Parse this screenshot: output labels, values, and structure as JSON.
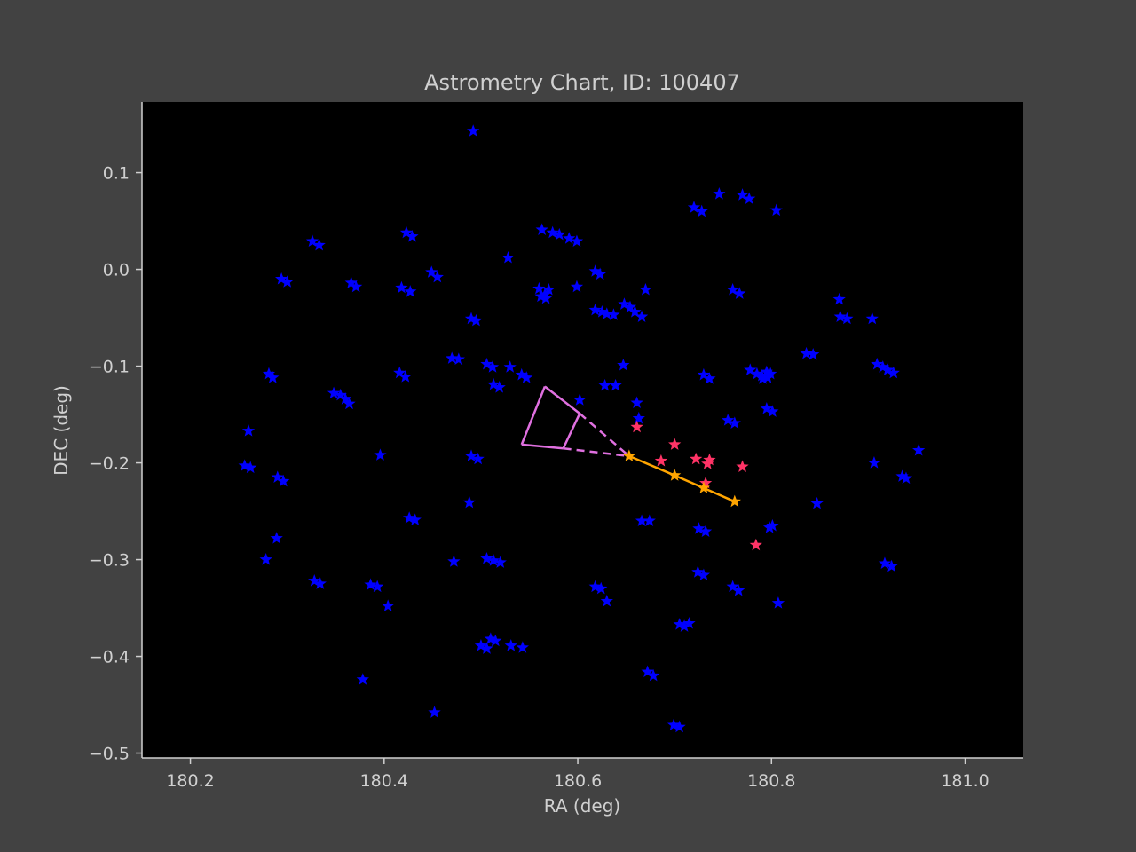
{
  "chart_data": {
    "type": "scatter",
    "title": "Astrometry Chart, ID: 100407",
    "xlabel": "RA (deg)",
    "ylabel": "DEC (deg)",
    "xlim": [
      180.15,
      181.06
    ],
    "ylim": [
      -0.505,
      0.173
    ],
    "xticks": [
      180.2,
      180.4,
      180.6,
      180.8,
      181.0
    ],
    "xtick_labels": [
      "180.2",
      "180.4",
      "180.6",
      "180.8",
      "181.0"
    ],
    "yticks": [
      0.1,
      0.0,
      -0.1,
      -0.2,
      -0.3,
      -0.4,
      -0.5
    ],
    "ytick_labels": [
      "0.1",
      "0.0",
      "−0.1",
      "−0.2",
      "−0.3",
      "−0.4",
      "−0.5"
    ],
    "grid": false,
    "colors": {
      "figure_bg": "#424242",
      "axes_bg": "#000000",
      "field_stars": "#0000ff",
      "highlight_stars": "#ff3366",
      "track": "#ffa500",
      "fov_marker": "#e070e0",
      "text": "#d0d0d0"
    },
    "series": [
      {
        "marker": "star",
        "color": "#0000ff",
        "points": [
          [
            180.492,
            0.143
          ],
          [
            180.326,
            0.029
          ],
          [
            180.333,
            0.025
          ],
          [
            180.423,
            0.038
          ],
          [
            180.429,
            0.034
          ],
          [
            180.528,
            0.012
          ],
          [
            180.563,
            0.041
          ],
          [
            180.574,
            0.038
          ],
          [
            180.581,
            0.036
          ],
          [
            180.591,
            0.032
          ],
          [
            180.599,
            0.029
          ],
          [
            180.449,
            -0.003
          ],
          [
            180.455,
            -0.008
          ],
          [
            180.294,
            -0.01
          ],
          [
            180.3,
            -0.013
          ],
          [
            180.366,
            -0.014
          ],
          [
            180.371,
            -0.018
          ],
          [
            180.418,
            -0.019
          ],
          [
            180.427,
            -0.023
          ],
          [
            180.56,
            -0.02
          ],
          [
            180.566,
            -0.026
          ],
          [
            180.57,
            -0.021
          ],
          [
            180.562,
            -0.028
          ],
          [
            180.567,
            -0.03
          ],
          [
            180.599,
            -0.018
          ],
          [
            180.618,
            -0.002
          ],
          [
            180.623,
            -0.005
          ],
          [
            180.72,
            0.064
          ],
          [
            180.728,
            0.06
          ],
          [
            180.746,
            0.078
          ],
          [
            180.77,
            0.077
          ],
          [
            180.777,
            0.073
          ],
          [
            180.805,
            0.061
          ],
          [
            180.67,
            -0.021
          ],
          [
            180.76,
            -0.021
          ],
          [
            180.767,
            -0.025
          ],
          [
            180.49,
            -0.051
          ],
          [
            180.495,
            -0.053
          ],
          [
            180.618,
            -0.042
          ],
          [
            180.625,
            -0.044
          ],
          [
            180.63,
            -0.046
          ],
          [
            180.637,
            -0.047
          ],
          [
            180.648,
            -0.036
          ],
          [
            180.654,
            -0.039
          ],
          [
            180.659,
            -0.044
          ],
          [
            180.666,
            -0.049
          ],
          [
            180.87,
            -0.031
          ],
          [
            180.871,
            -0.049
          ],
          [
            180.878,
            -0.051
          ],
          [
            180.904,
            -0.051
          ],
          [
            180.47,
            -0.092
          ],
          [
            180.477,
            -0.093
          ],
          [
            180.506,
            -0.098
          ],
          [
            180.512,
            -0.101
          ],
          [
            180.53,
            -0.101
          ],
          [
            180.542,
            -0.109
          ],
          [
            180.547,
            -0.112
          ],
          [
            180.416,
            -0.107
          ],
          [
            180.422,
            -0.111
          ],
          [
            180.281,
            -0.108
          ],
          [
            180.285,
            -0.112
          ],
          [
            180.348,
            -0.128
          ],
          [
            180.355,
            -0.13
          ],
          [
            180.36,
            -0.134
          ],
          [
            180.364,
            -0.139
          ],
          [
            180.513,
            -0.119
          ],
          [
            180.519,
            -0.122
          ],
          [
            180.647,
            -0.099
          ],
          [
            180.628,
            -0.12
          ],
          [
            180.639,
            -0.12
          ],
          [
            180.602,
            -0.135
          ],
          [
            180.661,
            -0.138
          ],
          [
            180.663,
            -0.154
          ],
          [
            180.73,
            -0.109
          ],
          [
            180.736,
            -0.113
          ],
          [
            180.778,
            -0.104
          ],
          [
            180.785,
            -0.108
          ],
          [
            180.79,
            -0.11
          ],
          [
            180.795,
            -0.106
          ],
          [
            180.799,
            -0.108
          ],
          [
            180.791,
            -0.113
          ],
          [
            180.796,
            -0.112
          ],
          [
            180.836,
            -0.087
          ],
          [
            180.843,
            -0.088
          ],
          [
            180.909,
            -0.098
          ],
          [
            180.915,
            -0.101
          ],
          [
            180.92,
            -0.104
          ],
          [
            180.926,
            -0.107
          ],
          [
            180.795,
            -0.144
          ],
          [
            180.801,
            -0.147
          ],
          [
            180.755,
            -0.156
          ],
          [
            180.762,
            -0.159
          ],
          [
            180.26,
            -0.167
          ],
          [
            180.256,
            -0.203
          ],
          [
            180.262,
            -0.205
          ],
          [
            180.396,
            -0.192
          ],
          [
            180.49,
            -0.193
          ],
          [
            180.497,
            -0.196
          ],
          [
            180.906,
            -0.2
          ],
          [
            180.952,
            -0.187
          ],
          [
            180.935,
            -0.214
          ],
          [
            180.939,
            -0.216
          ],
          [
            180.29,
            -0.215
          ],
          [
            180.296,
            -0.219
          ],
          [
            180.488,
            -0.241
          ],
          [
            180.847,
            -0.242
          ],
          [
            180.426,
            -0.257
          ],
          [
            180.432,
            -0.259
          ],
          [
            180.666,
            -0.26
          ],
          [
            180.674,
            -0.26
          ],
          [
            180.725,
            -0.268
          ],
          [
            180.732,
            -0.271
          ],
          [
            180.798,
            -0.267
          ],
          [
            180.801,
            -0.265
          ],
          [
            180.289,
            -0.278
          ],
          [
            180.278,
            -0.3
          ],
          [
            180.472,
            -0.302
          ],
          [
            180.506,
            -0.299
          ],
          [
            180.513,
            -0.301
          ],
          [
            180.52,
            -0.303
          ],
          [
            180.917,
            -0.304
          ],
          [
            180.924,
            -0.307
          ],
          [
            180.328,
            -0.322
          ],
          [
            180.334,
            -0.325
          ],
          [
            180.386,
            -0.326
          ],
          [
            180.393,
            -0.328
          ],
          [
            180.618,
            -0.328
          ],
          [
            180.624,
            -0.33
          ],
          [
            180.63,
            -0.343
          ],
          [
            180.724,
            -0.313
          ],
          [
            180.73,
            -0.316
          ],
          [
            180.76,
            -0.328
          ],
          [
            180.766,
            -0.332
          ],
          [
            180.807,
            -0.345
          ],
          [
            180.404,
            -0.348
          ],
          [
            180.51,
            -0.382
          ],
          [
            180.515,
            -0.384
          ],
          [
            180.5,
            -0.389
          ],
          [
            180.506,
            -0.392
          ],
          [
            180.531,
            -0.389
          ],
          [
            180.543,
            -0.391
          ],
          [
            180.705,
            -0.367
          ],
          [
            180.71,
            -0.369
          ],
          [
            180.715,
            -0.366
          ],
          [
            180.672,
            -0.416
          ],
          [
            180.678,
            -0.42
          ],
          [
            180.378,
            -0.424
          ],
          [
            180.452,
            -0.458
          ],
          [
            180.699,
            -0.471
          ],
          [
            180.705,
            -0.473
          ]
        ]
      },
      {
        "marker": "star",
        "color": "#ff3366",
        "points": [
          [
            180.661,
            -0.163
          ],
          [
            180.7,
            -0.181
          ],
          [
            180.686,
            -0.198
          ],
          [
            180.722,
            -0.196
          ],
          [
            180.736,
            -0.197
          ],
          [
            180.734,
            -0.201
          ],
          [
            180.77,
            -0.204
          ],
          [
            180.732,
            -0.221
          ],
          [
            180.784,
            -0.285
          ]
        ]
      },
      {
        "marker": "star",
        "line": true,
        "color": "#ffa500",
        "points": [
          [
            180.653,
            -0.193
          ],
          [
            180.7,
            -0.213
          ],
          [
            180.73,
            -0.226
          ],
          [
            180.762,
            -0.24
          ]
        ]
      }
    ],
    "fov_marker": {
      "color": "#e070e0",
      "outer_arc": [
        [
          180.566,
          -0.121
        ],
        [
          180.542,
          -0.181
        ]
      ],
      "inner_arc": [
        [
          180.602,
          -0.149
        ],
        [
          180.585,
          -0.185
        ]
      ],
      "solid_edges": [
        [
          [
            180.566,
            -0.121
          ],
          [
            180.602,
            -0.149
          ]
        ],
        [
          [
            180.542,
            -0.181
          ],
          [
            180.585,
            -0.185
          ]
        ]
      ],
      "dashed_edges": [
        [
          [
            180.602,
            -0.149
          ],
          [
            180.653,
            -0.193
          ]
        ],
        [
          [
            180.585,
            -0.185
          ],
          [
            180.653,
            -0.193
          ]
        ]
      ]
    }
  }
}
